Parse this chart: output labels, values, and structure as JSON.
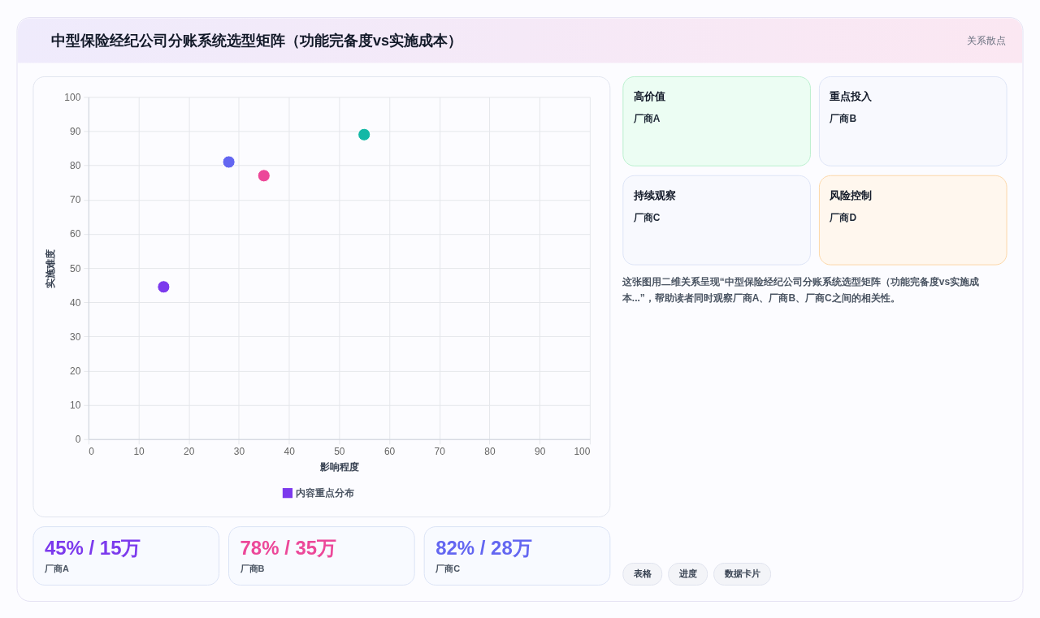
{
  "chart_data": [
    {
      "type": "scatter",
      "title": "中型保险经纪公司分账系统选型矩阵（功能完备度vs实施成本）",
      "xlabel": "影响程度",
      "ylabel": "实施难度",
      "x": [
        15,
        28,
        35,
        55
      ],
      "series": [
        {
          "name": "内容重点分布",
          "color": "#7c3aed",
          "colors": [
            "#7c3aed",
            "#6366f1",
            "#ec4899",
            "#14b8a6"
          ],
          "values": [
            44.5,
            81,
            77,
            89
          ]
        }
      ],
      "xlim": [
        0,
        100
      ],
      "xticks": [
        0,
        10,
        20,
        30,
        40,
        50,
        60,
        70,
        80,
        90,
        100
      ],
      "ylim": [
        0,
        100
      ],
      "yticks": [
        0,
        10,
        20,
        30,
        40,
        50,
        60,
        70,
        80,
        90,
        100
      ],
      "grid": true,
      "legend": "bottom",
      "marker": "circle",
      "annotations": [
        "关系散点"
      ]
    },
    {
      "type": "other",
      "annotations": [
        "高价值",
        "厂商A",
        "重点投入",
        "厂商B",
        "持续观察",
        "厂商C",
        "风险控制",
        "厂商D"
      ]
    },
    {
      "type": "other",
      "annotations": [
        "这张图用二维关系呈现“中型保险经纪公司分账系统选型矩阵（功能完备度vs实施成本...”，帮助读者同时观察厂商A、厂商B、厂商C之间的相关性。"
      ]
    },
    {
      "type": "other",
      "annotations": [
        "45% / 15万",
        "厂商A",
        "78% / 35万",
        "厂商B",
        "82% / 28万",
        "厂商C"
      ],
      "colors": [
        "#7c3aed",
        "#ec4899",
        "#6366f1"
      ]
    },
    {
      "type": "other",
      "annotations": [
        "表格",
        "进度",
        "数据卡片"
      ]
    }
  ]
}
